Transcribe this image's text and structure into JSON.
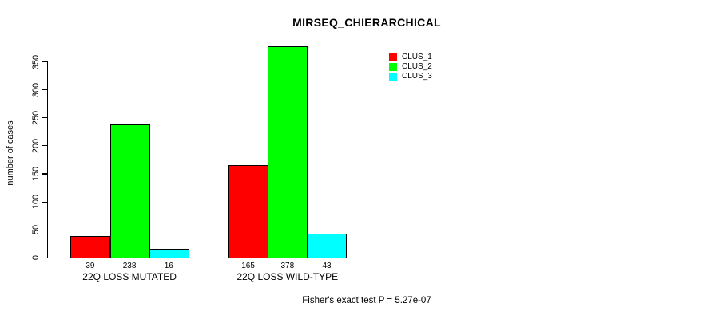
{
  "title": "MIRSEQ_CHIERARCHICAL",
  "footer": "Fisher's exact test P = 5.27e-07",
  "colors": {
    "clus_1": "#FF0000",
    "clus_2": "#00FF00",
    "clus_3": "#00FFFF",
    "axis": "#000000",
    "background": "#FFFFFF"
  },
  "chart_data": {
    "type": "bar",
    "title": "MIRSEQ_CHIERARCHICAL",
    "xlabel": "",
    "ylabel": "number of cases",
    "ylim": [
      0,
      350
    ],
    "yticks": [
      0,
      50,
      100,
      150,
      200,
      250,
      300,
      350
    ],
    "grid": false,
    "legend_position": "top-right",
    "categories": [
      "22Q LOSS MUTATED",
      "22Q LOSS WILD-TYPE"
    ],
    "series": [
      {
        "name": "CLUS_1",
        "color": "#FF0000",
        "values": [
          39,
          165
        ]
      },
      {
        "name": "CLUS_2",
        "color": "#00FF00",
        "values": [
          238,
          378
        ]
      },
      {
        "name": "CLUS_3",
        "color": "#00FFFF",
        "values": [
          16,
          43
        ]
      }
    ],
    "bar_value_labels": [
      [
        "39",
        "238",
        "16"
      ],
      [
        "165",
        "378",
        "43"
      ]
    ],
    "annotation": "Fisher's exact test P = 5.27e-07"
  }
}
